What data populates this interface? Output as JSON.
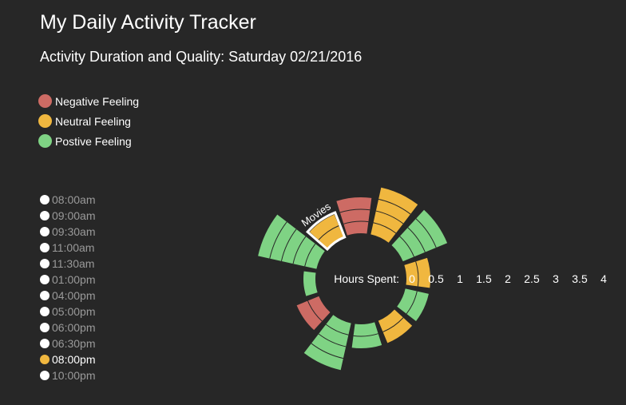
{
  "header": {
    "title": "My Daily Activity Tracker",
    "subtitle": "Activity Duration and Quality: Saturday 02/21/2016"
  },
  "legend": [
    {
      "label": "Negative Feeling",
      "color": "#cd6b64"
    },
    {
      "label": "Neutral Feeling",
      "color": "#f0b73f"
    },
    {
      "label": "Postive Feeling",
      "color": "#7fd384"
    }
  ],
  "timeline": {
    "items": [
      "08:00am",
      "09:00am",
      "09:30am",
      "11:00am",
      "11:30am",
      "01:00pm",
      "04:00pm",
      "05:00pm",
      "06:00pm",
      "06:30pm",
      "08:00pm",
      "10:00pm"
    ],
    "selected": "08:00pm"
  },
  "chart_data": {
    "type": "radial-bar",
    "axis_label": "Hours Spent:",
    "ticks": [
      "0",
      "0.5",
      "1",
      "1.5",
      "2",
      "2.5",
      "3",
      "3.5",
      "4"
    ],
    "rlim": [
      0,
      4
    ],
    "highlighted_label": "Movies",
    "segments": [
      {
        "time": "08:00am",
        "hours": 2,
        "feeling": "neutral"
      },
      {
        "time": "09:00am",
        "hours": 2,
        "feeling": "positive"
      },
      {
        "time": "09:30am",
        "hours": 1,
        "feeling": "neutral"
      },
      {
        "time": "11:00am",
        "hours": 1,
        "feeling": "positive"
      },
      {
        "time": "11:30am",
        "hours": 1,
        "feeling": "neutral"
      },
      {
        "time": "01:00pm",
        "hours": 1,
        "feeling": "positive"
      },
      {
        "time": "04:00pm",
        "hours": 2,
        "feeling": "positive"
      },
      {
        "time": "05:00pm",
        "hours": 1,
        "feeling": "negative"
      },
      {
        "time": "06:00pm",
        "hours": 0.5,
        "feeling": "positive"
      },
      {
        "time": "06:30pm",
        "hours": 2.5,
        "feeling": "positive"
      },
      {
        "time": "08:00pm",
        "hours": 1,
        "feeling": "neutral"
      },
      {
        "time": "10:00pm",
        "hours": 1.5,
        "feeling": "negative"
      }
    ]
  }
}
